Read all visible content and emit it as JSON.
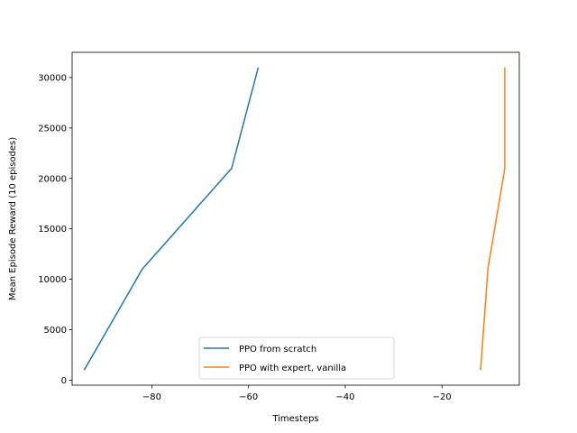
{
  "chart_data": {
    "type": "line",
    "title": "",
    "xlabel": "Timesteps",
    "ylabel": "Mean Episode Reward (10 episodes)",
    "xlim": [
      -96.5,
      -4.0
    ],
    "ylim": [
      -500,
      32500
    ],
    "xticks": [
      -80,
      -60,
      -40,
      -20
    ],
    "xtick_labels": [
      "−80",
      "−60",
      "−40",
      "−20"
    ],
    "yticks": [
      0,
      5000,
      10000,
      15000,
      20000,
      25000,
      30000
    ],
    "ytick_labels": [
      "0",
      "5000",
      "10000",
      "15000",
      "20000",
      "25000",
      "30000"
    ],
    "grid": false,
    "legend_position": "lower-center",
    "series": [
      {
        "name": "PPO from scratch",
        "color": "#1f77b4",
        "x": [
          -94,
          -82,
          -63.5,
          -58
        ],
        "y": [
          1000,
          11000,
          21000,
          31000
        ]
      },
      {
        "name": "PPO with expert, vanilla",
        "color": "#ff7f0e",
        "x": [
          -12,
          -10.5,
          -7,
          -7
        ],
        "y": [
          1000,
          11000,
          21000,
          31000
        ]
      }
    ]
  }
}
